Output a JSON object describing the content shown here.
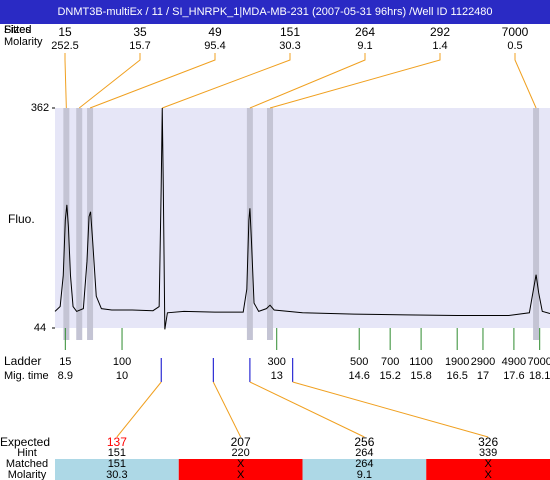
{
  "chart_data": {
    "type": "line",
    "title": "DNMT3B-multiEx / 11 / SI_HNRPK_1|MDA-MB-231 (2007-05-31 96hrs) /Well ID 1122480",
    "header_labels": [
      "Sizes",
      "Fitted"
    ],
    "molarity_label": "Molarity",
    "y_label": "Fluo.",
    "ylim": [
      44,
      362
    ],
    "yticks": [
      44,
      362
    ],
    "xlim": [
      8.7,
      18.3
    ],
    "background": "#e6e6f7",
    "line_color": "#000000",
    "x": [
      8.7,
      8.8,
      8.86,
      8.9,
      8.93,
      8.96,
      9.0,
      9.05,
      9.12,
      9.25,
      9.32,
      9.36,
      9.39,
      9.43,
      9.5,
      9.6,
      9.8,
      10.2,
      10.6,
      10.72,
      10.76,
      10.78,
      10.8,
      10.83,
      10.88,
      11.2,
      11.8,
      12.35,
      12.42,
      12.46,
      12.48,
      12.51,
      12.56,
      12.65,
      12.8,
      12.87,
      12.95,
      13.5,
      14.5,
      15.5,
      16.5,
      17.5,
      17.9,
      17.98,
      18.03,
      18.08,
      18.15,
      18.3
    ],
    "values": [
      68,
      75,
      120,
      200,
      222,
      190,
      120,
      75,
      68,
      72,
      140,
      205,
      212,
      170,
      90,
      72,
      70,
      70,
      69,
      75,
      250,
      362,
      250,
      42,
      66,
      68,
      67,
      67,
      100,
      200,
      217,
      170,
      80,
      68,
      72,
      77,
      70,
      66,
      64,
      63,
      62,
      62,
      66,
      100,
      121,
      95,
      68,
      65
    ],
    "peaks": {
      "sizes": [
        15,
        35,
        49,
        151,
        264,
        292,
        7000
      ],
      "molarity": [
        252.5,
        15.7,
        95.4,
        30.3,
        9.1,
        1.4,
        0.5
      ],
      "times": [
        8.92,
        9.17,
        9.38,
        10.78,
        12.48,
        12.87,
        18.03
      ],
      "shaded": [
        true,
        true,
        true,
        false,
        true,
        true,
        true
      ],
      "band_color": "#c4c4d4",
      "connector_color": "#f0a020"
    },
    "ladder": {
      "label": "Ladder",
      "time_label": "Mig. time",
      "sizes": [
        15,
        100,
        300,
        500,
        700,
        1100,
        1900,
        2900,
        4900,
        7000
      ],
      "times": [
        8.9,
        10,
        13,
        14.6,
        15.2,
        15.8,
        16.5,
        17,
        17.6,
        18.1
      ],
      "color": "#2e8b2e"
    },
    "expected": {
      "labels": [
        "Expected",
        "Hint",
        "Matched",
        "Molarity"
      ],
      "values": [
        137,
        207,
        256,
        326
      ],
      "times": [
        10.76,
        11.77,
        12.48,
        13.31
      ],
      "colors": [
        "#ff0000",
        "#000000",
        "#000000",
        "#000000"
      ],
      "tick_color": "#0000cc",
      "hint": [
        151,
        220,
        264,
        339
      ],
      "matched": [
        151,
        "X",
        264,
        "X"
      ],
      "molarity": [
        30.3,
        "X",
        9.1,
        "X"
      ],
      "cell_colors": [
        "#add8e6",
        "#ff0000",
        "#add8e6",
        "#ff0000"
      ]
    }
  }
}
